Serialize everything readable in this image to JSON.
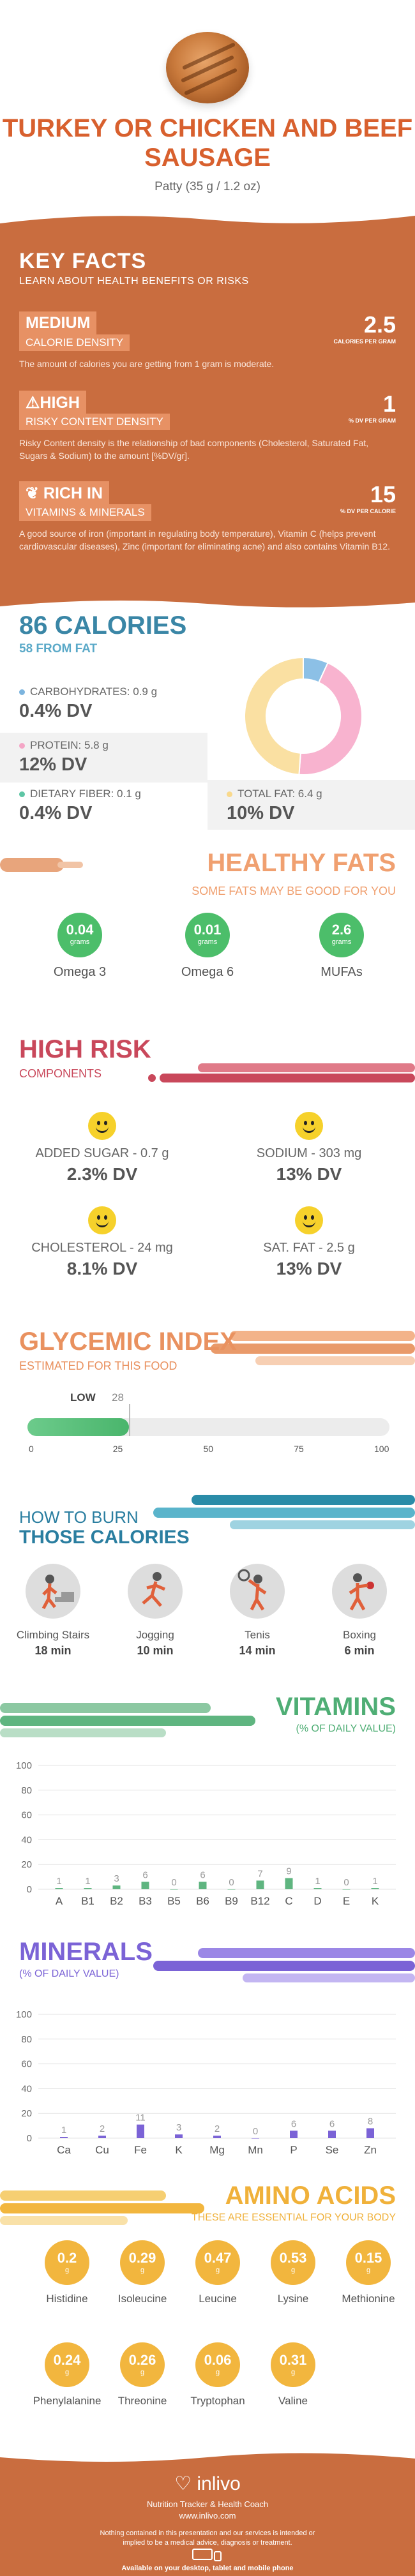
{
  "header": {
    "title": "TURKEY OR CHICKEN AND BEEF SAUSAGE",
    "serving": "Patty (35 g / 1.2 oz)"
  },
  "key_facts": {
    "title": "KEY FACTS",
    "subtitle": "LEARN ABOUT HEALTH BENEFITS OR RISKS",
    "items": [
      {
        "level": "MEDIUM",
        "name": "CALORIE DENSITY",
        "value": "2.5",
        "unit": "CALORIES PER GRAM",
        "desc": "The amount of calories you are getting from 1 gram is moderate."
      },
      {
        "level": "HIGH",
        "name": "RISKY CONTENT DENSITY",
        "value": "1",
        "unit": "% DV PER GRAM",
        "desc": "Risky Content density is the relationship of bad components (Cholesterol, Saturated Fat, Sugars & Sodium) to the amount [%DV/gr]."
      },
      {
        "level": "RICH  IN",
        "name": "VITAMINS & MINERALS",
        "value": "15",
        "unit": "% DV PER CALORIE",
        "desc": "A good source of iron (important in regulating body temperature), Vitamin C (helps prevent cardiovascular diseases), Zinc (important for eliminating acne) and also contains Vitamin B12."
      }
    ]
  },
  "calories": {
    "title": "86 CALORIES",
    "from_fat": "58 FROM FAT",
    "nutrients": [
      {
        "label": "CARBOHYDRATES: 0.9 g",
        "dv": "0.4% DV",
        "color": "#7cb4de"
      },
      {
        "label": "PROTEIN: 5.8 g",
        "dv": "12% DV",
        "color": "#f4a6c6"
      },
      {
        "label": "DIETARY FIBER: 0.1 g",
        "dv": "0.4% DV",
        "color": "#5ec6a5"
      },
      {
        "label": "TOTAL FAT: 6.4 g",
        "dv": "10% DV",
        "color": "#f9d98c"
      }
    ],
    "donut": [
      {
        "name": "Carbohydrates",
        "value": 0.9,
        "color": "#8cc0e6"
      },
      {
        "name": "Protein",
        "value": 5.8,
        "color": "#f8b3cf"
      },
      {
        "name": "Fat",
        "value": 6.4,
        "color": "#fae0a2"
      }
    ]
  },
  "healthy_fats": {
    "title": "HEALTHY FATS",
    "subtitle": "SOME FATS MAY BE GOOD FOR YOU",
    "items": [
      {
        "value": "0.04",
        "unit": "grams",
        "label": "Omega 3"
      },
      {
        "value": "0.01",
        "unit": "grams",
        "label": "Omega 6"
      },
      {
        "value": "2.6",
        "unit": "grams",
        "label": "MUFAs"
      }
    ]
  },
  "high_risk": {
    "title": "HIGH RISK",
    "subtitle": "COMPONENTS",
    "items": [
      {
        "label": "ADDED SUGAR - 0.7 g",
        "dv": "2.3% DV"
      },
      {
        "label": "SODIUM - 303 mg",
        "dv": "13% DV"
      },
      {
        "label": "CHOLESTEROL - 24 mg",
        "dv": "8.1% DV"
      },
      {
        "label": "SAT. FAT - 2.5 g",
        "dv": "13% DV"
      }
    ]
  },
  "glycemic": {
    "title": "GLYCEMIC INDEX",
    "subtitle": "ESTIMATED FOR THIS FOOD",
    "level": "LOW",
    "value": 28,
    "value_label": "28",
    "ticks": [
      "0",
      "25",
      "50",
      "75",
      "100"
    ]
  },
  "burn": {
    "title1": "HOW TO BURN",
    "title2": "THOSE CALORIES",
    "items": [
      {
        "label": "Climbing Stairs",
        "time": "18 min"
      },
      {
        "label": "Jogging",
        "time": "10 min"
      },
      {
        "label": "Tenis",
        "time": "14 min"
      },
      {
        "label": "Boxing",
        "time": "6 min"
      }
    ]
  },
  "vitamins": {
    "title": "VITAMINS",
    "subtitle": "(% OF DAILY VALUE)",
    "chart_data": {
      "type": "bar",
      "categories": [
        "A",
        "B1",
        "B2",
        "B3",
        "B5",
        "B6",
        "B9",
        "B12",
        "C",
        "D",
        "E",
        "K"
      ],
      "values": [
        1,
        1,
        3,
        6,
        0,
        6,
        0,
        7,
        9,
        1,
        0,
        1
      ],
      "value_labels": [
        "1",
        "1",
        "3",
        "6",
        "0",
        "6",
        "0",
        "7",
        "9",
        "1",
        "0",
        "1"
      ],
      "ylim": [
        0,
        100
      ],
      "yticks": [
        "0",
        "20",
        "40",
        "60",
        "80",
        "100"
      ],
      "color": "#5fb580"
    }
  },
  "minerals": {
    "title": "MINERALS",
    "subtitle": "(% OF DAILY VALUE)",
    "chart_data": {
      "type": "bar",
      "categories": [
        "Ca",
        "Cu",
        "Fe",
        "K",
        "Mg",
        "Mn",
        "P",
        "Se",
        "Zn"
      ],
      "values": [
        1,
        2,
        11,
        3,
        2,
        0,
        6,
        6,
        8
      ],
      "value_labels": [
        "1",
        "2",
        "11",
        "3",
        "2",
        "0",
        "6",
        "6",
        "8"
      ],
      "ylim": [
        0,
        100
      ],
      "yticks": [
        "0",
        "20",
        "40",
        "60",
        "80",
        "100"
      ],
      "color": "#7b63d6"
    }
  },
  "amino": {
    "title": "AMINO ACIDS",
    "subtitle": "THESE ARE ESSENTIAL FOR YOUR BODY",
    "items": [
      {
        "value": "0.2",
        "unit": "g",
        "label": "Histidine"
      },
      {
        "value": "0.29",
        "unit": "g",
        "label": "Isoleucine"
      },
      {
        "value": "0.47",
        "unit": "g",
        "label": "Leucine"
      },
      {
        "value": "0.53",
        "unit": "g",
        "label": "Lysine"
      },
      {
        "value": "0.15",
        "unit": "g",
        "label": "Methionine"
      },
      {
        "value": "0.24",
        "unit": "g",
        "label": "Phenylalanine"
      },
      {
        "value": "0.26",
        "unit": "g",
        "label": "Threonine"
      },
      {
        "value": "0.06",
        "unit": "g",
        "label": "Tryptophan"
      },
      {
        "value": "0.31",
        "unit": "g",
        "label": "Valine"
      }
    ]
  },
  "footer": {
    "brand": "inlivo",
    "tagline": "Nutrition Tracker & Health Coach",
    "url": "www.inlivo.com",
    "disclaimer": "Nothing contained in this presentation and our services is intended or implied to be a medical advice, diagnosis or treatment.",
    "available": "Available on your desktop, tablet and mobile phone"
  }
}
